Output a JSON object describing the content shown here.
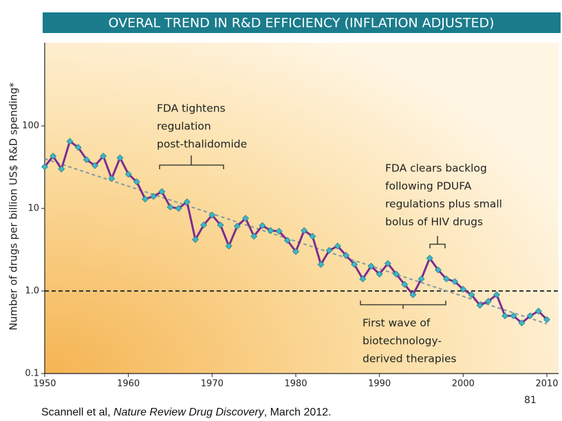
{
  "chart_data": {
    "type": "line",
    "title": "OVERAL TREND IN R&D EFFICIENCY (INFLATION ADJUSTED)",
    "y_label": "Number of drugs per billion US$ R&D spending*",
    "log_y": true,
    "xlim": [
      1950,
      2010
    ],
    "xticks": [
      1950,
      1960,
      1970,
      1980,
      1990,
      2000,
      2010
    ],
    "ylim": [
      0.1,
      1000
    ],
    "yticks": [
      0.1,
      {
        "value": 1,
        "label": "1.0"
      },
      10,
      100
    ],
    "reference_line": 1,
    "trend": {
      "x": [
        1950,
        2010
      ],
      "values": [
        40,
        0.4
      ],
      "color": "#7f9aa3"
    },
    "x": [
      1950,
      1951,
      1952,
      1953,
      1954,
      1955,
      1956,
      1957,
      1958,
      1959,
      1960,
      1961,
      1962,
      1963,
      1964,
      1965,
      1966,
      1967,
      1968,
      1969,
      1970,
      1971,
      1972,
      1973,
      1974,
      1975,
      1976,
      1977,
      1978,
      1979,
      1980,
      1981,
      1982,
      1983,
      1984,
      1985,
      1986,
      1987,
      1988,
      1989,
      1990,
      1991,
      1992,
      1993,
      1994,
      1995,
      1996,
      1997,
      1998,
      1999,
      2000,
      2001,
      2002,
      2003,
      2004,
      2005,
      2006,
      2007,
      2008,
      2009,
      2010
    ],
    "series": [
      {
        "color": "#7b2d8e",
        "marker_color": "#3db6c6",
        "values": [
          32,
          43,
          30,
          65,
          55,
          39,
          33,
          43,
          23,
          41,
          26,
          21,
          13,
          14,
          16,
          10.4,
          10,
          12,
          4.2,
          6.3,
          8.3,
          6.3,
          3.5,
          6.1,
          7.6,
          4.6,
          6.2,
          5.4,
          5.3,
          4.1,
          3.0,
          5.4,
          4.6,
          2.1,
          3.1,
          3.5,
          2.7,
          2.1,
          1.4,
          2.0,
          1.6,
          2.15,
          1.6,
          1.2,
          0.9,
          1.4,
          2.5,
          1.8,
          1.4,
          1.3,
          1.05,
          0.9,
          0.67,
          0.75,
          0.9,
          0.5,
          0.5,
          0.41,
          0.5,
          0.57,
          0.45
        ]
      }
    ],
    "annotations": [
      {
        "lines": [
          "FDA tightens",
          "regulation",
          "post-thalidomide"
        ]
      },
      {
        "lines": [
          "FDA clears backlog",
          "following PDUFA",
          "regulations plus small",
          "bolus of HIV drugs"
        ]
      },
      {
        "lines": [
          "First wave of",
          "biotechnology-",
          "derived therapies"
        ]
      }
    ],
    "page_number": "81",
    "source": [
      "Scannell et al, ",
      "Nature Review Drug Discovery",
      ", March 2012."
    ]
  }
}
